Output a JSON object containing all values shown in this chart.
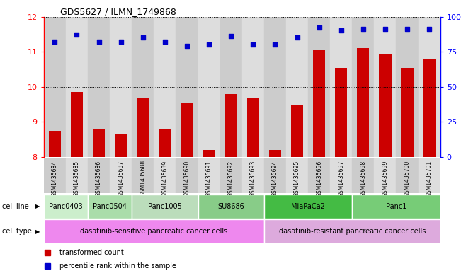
{
  "title": "GDS5627 / ILMN_1749868",
  "samples": [
    "GSM1435684",
    "GSM1435685",
    "GSM1435686",
    "GSM1435687",
    "GSM1435688",
    "GSM1435689",
    "GSM1435690",
    "GSM1435691",
    "GSM1435692",
    "GSM1435693",
    "GSM1435694",
    "GSM1435695",
    "GSM1435696",
    "GSM1435697",
    "GSM1435698",
    "GSM1435699",
    "GSM1435700",
    "GSM1435701"
  ],
  "bar_values": [
    8.75,
    9.85,
    8.8,
    8.65,
    9.7,
    8.8,
    9.55,
    8.2,
    9.8,
    9.7,
    8.2,
    9.5,
    11.05,
    10.55,
    11.1,
    10.95,
    10.55,
    10.8
  ],
  "percentile_values": [
    82,
    87,
    82,
    82,
    85,
    82,
    79,
    80,
    86,
    80,
    80,
    85,
    92,
    90,
    91,
    91,
    91,
    91
  ],
  "bar_color": "#cc0000",
  "dot_color": "#0000cc",
  "ylim_left": [
    8,
    12
  ],
  "ylim_right": [
    0,
    100
  ],
  "yticks_left": [
    8,
    9,
    10,
    11,
    12
  ],
  "yticks_right": [
    0,
    25,
    50,
    75,
    100
  ],
  "cell_lines": [
    {
      "label": "Panc0403",
      "start": 0,
      "end": 2,
      "color": "#cceecc"
    },
    {
      "label": "Panc0504",
      "start": 2,
      "end": 4,
      "color": "#aaddaa"
    },
    {
      "label": "Panc1005",
      "start": 4,
      "end": 7,
      "color": "#bbddbb"
    },
    {
      "label": "SU8686",
      "start": 7,
      "end": 10,
      "color": "#88cc88"
    },
    {
      "label": "MiaPaCa2",
      "start": 10,
      "end": 14,
      "color": "#44bb44"
    },
    {
      "label": "Panc1",
      "start": 14,
      "end": 18,
      "color": "#77cc77"
    }
  ],
  "cell_types": [
    {
      "label": "dasatinib-sensitive pancreatic cancer cells",
      "start": 0,
      "end": 10,
      "color": "#ee88ee"
    },
    {
      "label": "dasatinib-resistant pancreatic cancer cells",
      "start": 10,
      "end": 18,
      "color": "#ddaadd"
    }
  ],
  "legend_bar_label": "transformed count",
  "legend_dot_label": "percentile rank within the sample",
  "cell_line_label": "cell line",
  "cell_type_label": "cell type",
  "bg_colors": [
    "#cccccc",
    "#dddddd"
  ]
}
